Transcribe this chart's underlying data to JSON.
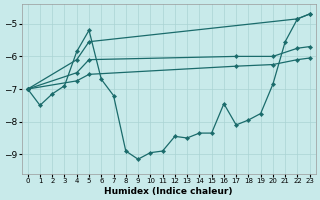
{
  "xlabel": "Humidex (Indice chaleur)",
  "bg_color": "#c8eaea",
  "grid_color": "#aad4d4",
  "line_color": "#1a6b6b",
  "xlim": [
    -0.5,
    23.5
  ],
  "ylim": [
    -9.6,
    -4.4
  ],
  "yticks": [
    -9,
    -8,
    -7,
    -6,
    -5
  ],
  "xticks": [
    0,
    1,
    2,
    3,
    4,
    5,
    6,
    7,
    8,
    9,
    10,
    11,
    12,
    13,
    14,
    15,
    16,
    17,
    18,
    19,
    20,
    21,
    22,
    23
  ],
  "line_bottom": {
    "x": [
      0,
      1,
      2,
      3,
      4,
      5,
      6,
      7,
      8,
      9,
      10,
      11,
      12,
      13,
      14,
      15,
      16,
      17,
      18,
      19,
      20,
      21,
      22,
      23
    ],
    "y": [
      -7.0,
      -7.5,
      -7.15,
      -6.9,
      -5.85,
      -5.2,
      -6.7,
      -7.2,
      -8.9,
      -9.15,
      -8.95,
      -8.9,
      -8.45,
      -8.5,
      -8.35,
      -8.35,
      -7.45,
      -8.1,
      -7.95,
      -7.75,
      -6.85,
      -5.55,
      -4.85,
      -4.7
    ]
  },
  "line_top1": {
    "x": [
      0,
      4,
      5,
      22,
      23
    ],
    "y": [
      -7.0,
      -6.1,
      -5.55,
      -4.85,
      -4.7
    ]
  },
  "line_top2": {
    "x": [
      0,
      4,
      5,
      17,
      20,
      22,
      23
    ],
    "y": [
      -7.0,
      -6.5,
      -6.1,
      -6.0,
      -6.0,
      -5.75,
      -5.7
    ]
  },
  "line_top3": {
    "x": [
      0,
      4,
      5,
      17,
      20,
      22,
      23
    ],
    "y": [
      -7.0,
      -6.75,
      -6.55,
      -6.3,
      -6.25,
      -6.1,
      -6.05
    ]
  }
}
